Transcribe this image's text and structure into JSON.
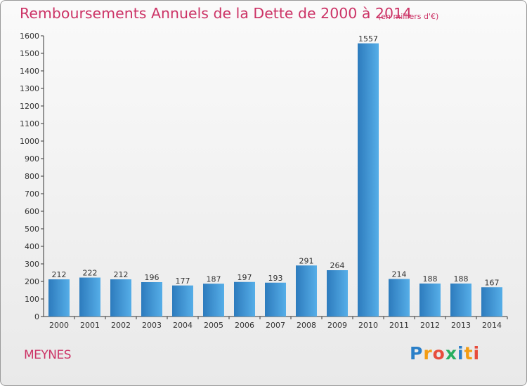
{
  "title": "Remboursements Annuels de la Dette de 2000 à 2014",
  "unit_note": "(en milliers d'€)",
  "city": "MEYNES",
  "logo": {
    "letters": [
      "P",
      "r",
      "o",
      "x",
      "i",
      "t",
      "i"
    ],
    "colors": [
      "#2a7fc8",
      "#f39c12",
      "#e74c3c",
      "#27ae60",
      "#2a7fc8",
      "#f39c12",
      "#e74c3c"
    ]
  },
  "colors": {
    "title": "#cc3366",
    "bar_dark": "#2d7bbd",
    "bar_light": "#56aee8",
    "axis": "#333333"
  },
  "chart_data": {
    "type": "bar",
    "title": "Remboursements Annuels de la Dette de 2000 à 2014",
    "subtitle": "(en milliers d'€)",
    "xlabel": "",
    "ylabel": "",
    "categories": [
      "2000",
      "2001",
      "2002",
      "2003",
      "2004",
      "2005",
      "2006",
      "2007",
      "2008",
      "2009",
      "2010",
      "2011",
      "2012",
      "2013",
      "2014"
    ],
    "values": [
      212,
      222,
      212,
      196,
      177,
      187,
      197,
      193,
      291,
      264,
      1557,
      214,
      188,
      188,
      167
    ],
    "ylim": [
      0,
      1600
    ],
    "yticks": [
      0,
      100,
      200,
      300,
      400,
      500,
      600,
      700,
      800,
      900,
      1000,
      1100,
      1200,
      1300,
      1400,
      1500,
      1600
    ],
    "grid": false,
    "data_labels": true
  }
}
